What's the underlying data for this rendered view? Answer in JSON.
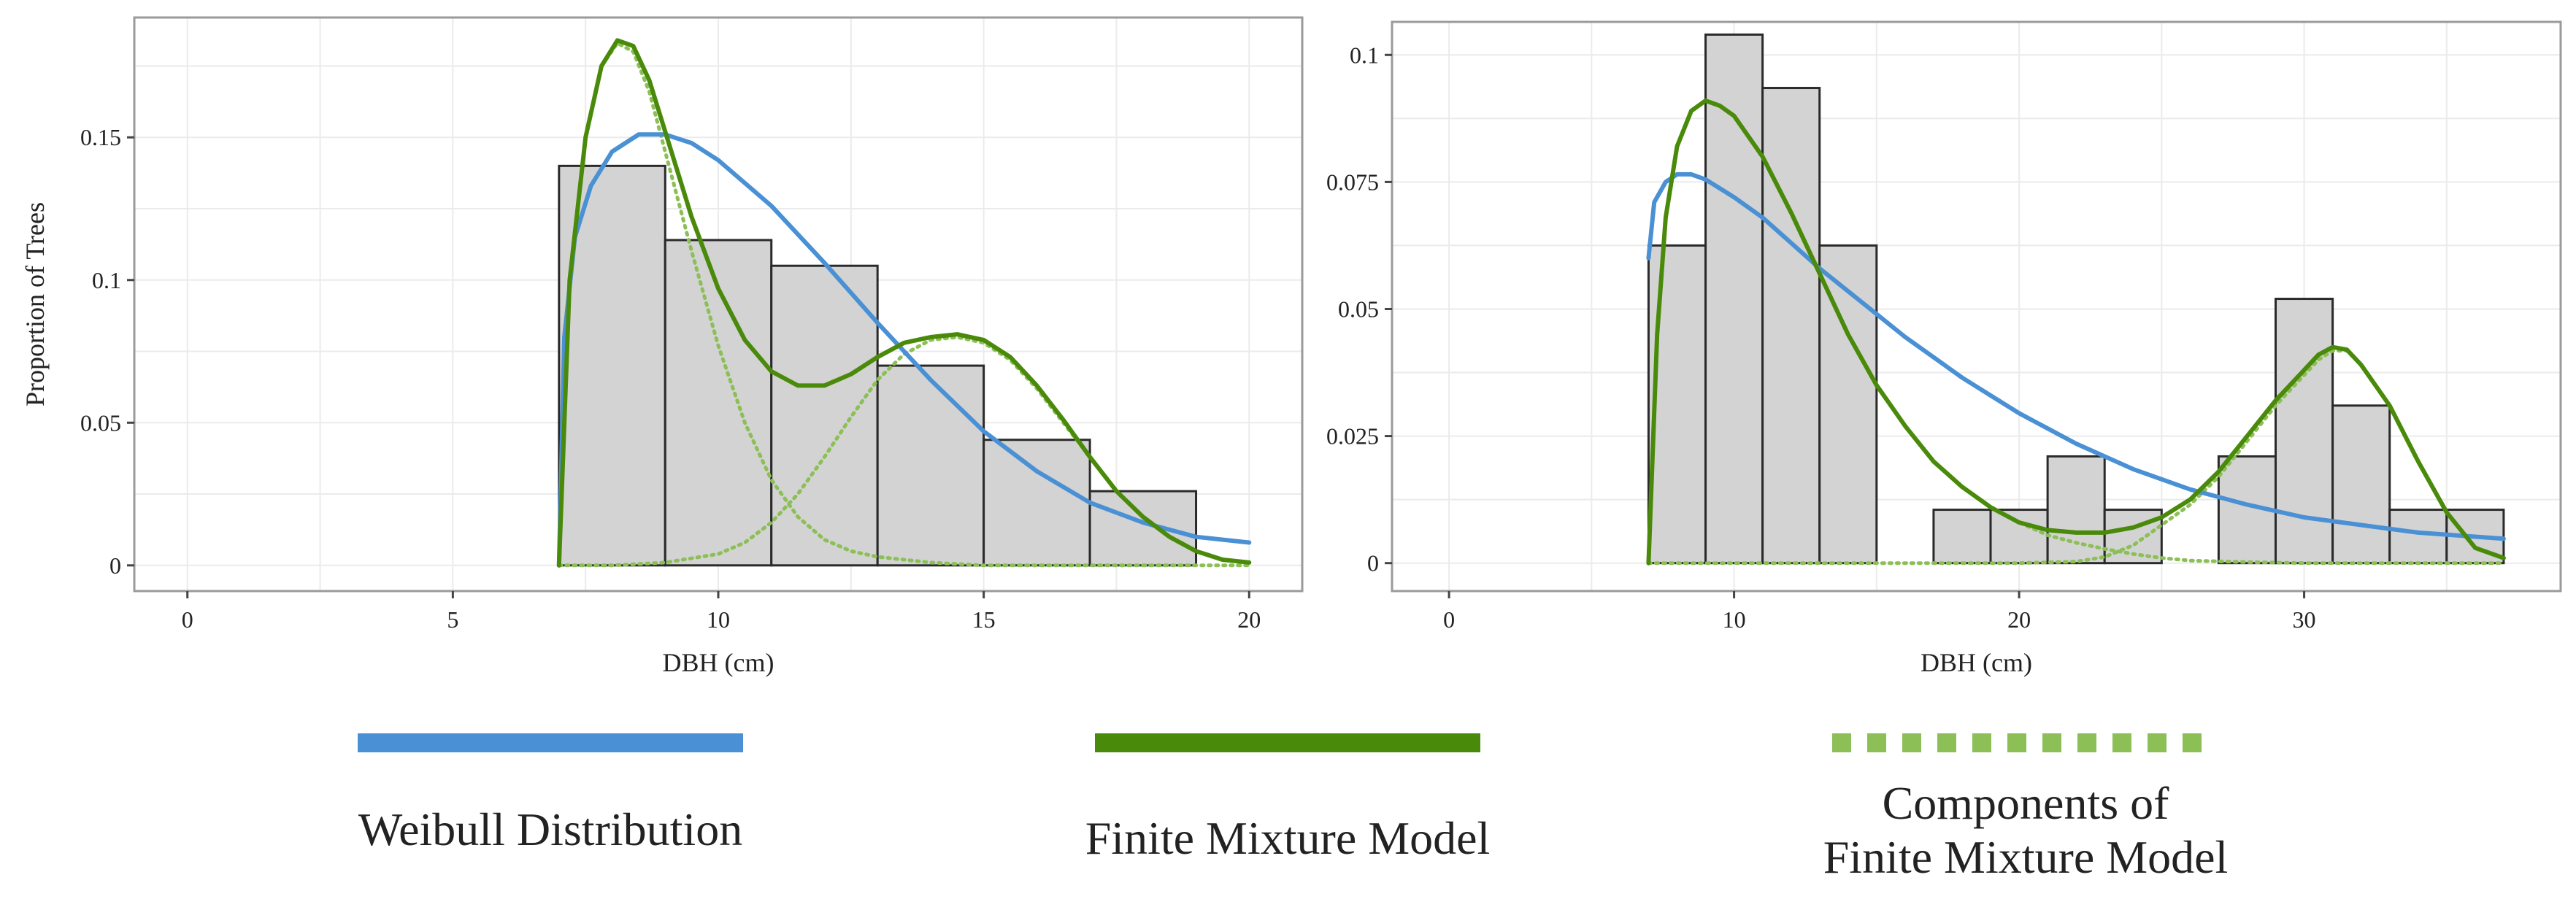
{
  "colors": {
    "weibull": "#4a90d4",
    "mixture": "#4a8a0a",
    "components": "#8cbf56",
    "bar_fill": "#d3d3d3",
    "bar_stroke": "#2a2a2a",
    "grid": "#ebebeb",
    "panel_border": "#9a9a9a"
  },
  "chart_data": [
    {
      "type": "bar",
      "xlabel": "DBH (cm)",
      "ylabel": "Proportion of Trees",
      "xlim": [
        -1,
        21
      ],
      "ylim": [
        -0.009,
        0.192
      ],
      "x_ticks": [
        0,
        5,
        10,
        15,
        20
      ],
      "x_tick_labels": [
        "0",
        "5",
        "10",
        "15",
        "20"
      ],
      "y_ticks": [
        0,
        0.05,
        0.1,
        0.15
      ],
      "y_tick_labels": [
        "0",
        "0.05",
        "0.1",
        "0.15"
      ],
      "grid": true,
      "bins": [
        {
          "x0": 7,
          "x1": 9,
          "value": 0.14
        },
        {
          "x0": 9,
          "x1": 11,
          "value": 0.114
        },
        {
          "x0": 11,
          "x1": 13,
          "value": 0.105
        },
        {
          "x0": 13,
          "x1": 15,
          "value": 0.07
        },
        {
          "x0": 15,
          "x1": 17,
          "value": 0.044
        },
        {
          "x0": 17,
          "x1": 19,
          "value": 0.026
        }
      ],
      "curves": [
        {
          "name": "Weibull Distribution",
          "style": "solid",
          "color_key": "weibull",
          "x": [
            7,
            7.1,
            7.3,
            7.6,
            8.0,
            8.5,
            9.0,
            9.5,
            10,
            11,
            12,
            13,
            14,
            15,
            16,
            17,
            18,
            19,
            20
          ],
          "y": [
            0,
            0.08,
            0.115,
            0.133,
            0.145,
            0.151,
            0.151,
            0.148,
            0.142,
            0.126,
            0.106,
            0.085,
            0.065,
            0.047,
            0.033,
            0.022,
            0.015,
            0.01,
            0.008
          ]
        },
        {
          "name": "Finite Mixture Model",
          "style": "solid",
          "color_key": "mixture",
          "x": [
            7,
            7.2,
            7.5,
            7.8,
            8.1,
            8.4,
            8.7,
            9.0,
            9.5,
            10,
            10.5,
            11,
            11.5,
            12,
            12.5,
            13,
            13.5,
            14,
            14.5,
            15,
            15.5,
            16,
            16.5,
            17,
            17.5,
            18,
            18.5,
            19,
            19.5,
            20
          ],
          "y": [
            0,
            0.1,
            0.15,
            0.175,
            0.184,
            0.182,
            0.17,
            0.152,
            0.122,
            0.097,
            0.079,
            0.068,
            0.063,
            0.063,
            0.067,
            0.073,
            0.078,
            0.08,
            0.081,
            0.079,
            0.073,
            0.063,
            0.051,
            0.038,
            0.026,
            0.017,
            0.01,
            0.005,
            0.002,
            0.001
          ]
        },
        {
          "name": "Components of Finite Mixture Model",
          "style": "dotted",
          "color_key": "components",
          "x": [
            7,
            7.2,
            7.5,
            7.8,
            8.1,
            8.4,
            8.7,
            9.0,
            9.5,
            10,
            10.5,
            11,
            11.5,
            12,
            12.5,
            13,
            14,
            15,
            16,
            17,
            18,
            19,
            20
          ],
          "y": [
            0,
            0.1,
            0.15,
            0.175,
            0.183,
            0.18,
            0.166,
            0.145,
            0.11,
            0.077,
            0.05,
            0.03,
            0.017,
            0.009,
            0.005,
            0.003,
            0.001,
            0,
            0,
            0,
            0,
            0,
            0
          ]
        },
        {
          "name": "Components of Finite Mixture Model",
          "style": "dotted",
          "color_key": "components",
          "x": [
            7,
            8,
            9,
            10,
            10.5,
            11,
            11.5,
            12,
            12.5,
            13,
            13.5,
            14,
            14.5,
            15,
            15.5,
            16,
            16.5,
            17,
            17.5,
            18,
            18.5,
            19,
            19.5,
            20
          ],
          "y": [
            0,
            0,
            0.001,
            0.004,
            0.008,
            0.015,
            0.025,
            0.038,
            0.052,
            0.065,
            0.074,
            0.079,
            0.08,
            0.078,
            0.072,
            0.062,
            0.05,
            0.038,
            0.026,
            0.017,
            0.01,
            0.005,
            0.002,
            0.001
          ]
        }
      ]
    },
    {
      "type": "bar",
      "xlabel": "DBH (cm)",
      "ylabel": "",
      "xlim": [
        -2,
        39
      ],
      "ylim": [
        -0.0055,
        0.1065
      ],
      "x_ticks": [
        0,
        10,
        20,
        30
      ],
      "x_tick_labels": [
        "0",
        "10",
        "20",
        "30"
      ],
      "y_ticks": [
        0,
        0.025,
        0.05,
        0.075,
        0.1
      ],
      "y_tick_labels": [
        "0",
        "0.025",
        "0.05",
        "0.075",
        "0.1"
      ],
      "grid": true,
      "bins": [
        {
          "x0": 7,
          "x1": 9,
          "value": 0.0625
        },
        {
          "x0": 9,
          "x1": 11,
          "value": 0.104
        },
        {
          "x0": 11,
          "x1": 13,
          "value": 0.0935
        },
        {
          "x0": 13,
          "x1": 15,
          "value": 0.0625
        },
        {
          "x0": 17,
          "x1": 19,
          "value": 0.0105
        },
        {
          "x0": 19,
          "x1": 21,
          "value": 0.0105
        },
        {
          "x0": 21,
          "x1": 23,
          "value": 0.021
        },
        {
          "x0": 23,
          "x1": 25,
          "value": 0.0105
        },
        {
          "x0": 27,
          "x1": 29,
          "value": 0.021
        },
        {
          "x0": 29,
          "x1": 31,
          "value": 0.052
        },
        {
          "x0": 31,
          "x1": 33,
          "value": 0.031
        },
        {
          "x0": 33,
          "x1": 35,
          "value": 0.0105
        },
        {
          "x0": 35,
          "x1": 37,
          "value": 0.0105
        }
      ],
      "curves": [
        {
          "name": "Weibull Distribution",
          "style": "solid",
          "color_key": "weibull",
          "x": [
            7,
            7.2,
            7.6,
            8,
            8.5,
            9,
            10,
            11,
            12,
            13,
            14,
            15,
            16,
            17,
            18,
            19,
            20,
            22,
            24,
            26,
            28,
            30,
            32,
            34,
            36,
            37
          ],
          "y": [
            0.06,
            0.071,
            0.075,
            0.0765,
            0.0765,
            0.0755,
            0.072,
            0.068,
            0.063,
            0.058,
            0.0535,
            0.049,
            0.0445,
            0.0405,
            0.0365,
            0.033,
            0.0295,
            0.0235,
            0.0185,
            0.0145,
            0.0115,
            0.009,
            0.0075,
            0.006,
            0.0052,
            0.0048
          ]
        },
        {
          "name": "Finite Mixture Model",
          "style": "solid",
          "color_key": "mixture",
          "x": [
            7,
            7.3,
            7.6,
            8,
            8.5,
            9,
            9.5,
            10,
            11,
            12,
            13,
            14,
            15,
            16,
            17,
            18,
            19,
            20,
            21,
            22,
            23,
            24,
            25,
            26,
            27,
            28,
            29,
            30,
            30.5,
            31,
            31.5,
            32,
            33,
            34,
            35,
            36,
            37
          ],
          "y": [
            0,
            0.045,
            0.068,
            0.082,
            0.089,
            0.091,
            0.09,
            0.088,
            0.08,
            0.069,
            0.057,
            0.045,
            0.035,
            0.027,
            0.02,
            0.015,
            0.011,
            0.008,
            0.0065,
            0.006,
            0.006,
            0.007,
            0.009,
            0.0125,
            0.018,
            0.025,
            0.032,
            0.038,
            0.041,
            0.0425,
            0.042,
            0.039,
            0.031,
            0.02,
            0.01,
            0.003,
            0.001
          ]
        },
        {
          "name": "Components of Finite Mixture Model",
          "style": "dotted",
          "color_key": "components",
          "x": [
            7,
            7.3,
            7.6,
            8,
            8.5,
            9,
            9.5,
            10,
            11,
            12,
            13,
            14,
            15,
            16,
            17,
            18,
            19,
            20,
            21,
            22,
            23,
            24,
            25,
            26,
            28,
            30,
            32,
            34,
            37
          ],
          "y": [
            0,
            0.045,
            0.068,
            0.082,
            0.089,
            0.091,
            0.09,
            0.088,
            0.08,
            0.069,
            0.057,
            0.045,
            0.035,
            0.027,
            0.02,
            0.015,
            0.011,
            0.008,
            0.0055,
            0.004,
            0.0028,
            0.0018,
            0.001,
            0.0005,
            0.0002,
            0,
            0,
            0,
            0
          ]
        },
        {
          "name": "Components of Finite Mixture Model",
          "style": "dotted",
          "color_key": "components",
          "x": [
            7,
            15,
            20,
            22,
            23,
            24,
            25,
            26,
            27,
            28,
            29,
            30,
            30.5,
            31,
            31.5,
            32,
            33,
            34,
            35,
            36,
            37
          ],
          "y": [
            0,
            0,
            0,
            0.0003,
            0.0012,
            0.0035,
            0.0075,
            0.0115,
            0.017,
            0.024,
            0.031,
            0.037,
            0.04,
            0.0418,
            0.0418,
            0.039,
            0.031,
            0.02,
            0.01,
            0.003,
            0.001
          ]
        }
      ]
    }
  ],
  "legend": {
    "items": [
      {
        "label": "Weibull Distribution",
        "line_lines": [
          "Weibull Distribution"
        ],
        "style": "solid",
        "color_key": "weibull"
      },
      {
        "label": "Finite Mixture Model",
        "line_lines": [
          "Finite Mixture Model"
        ],
        "style": "solid",
        "color_key": "mixture"
      },
      {
        "label": "Components of Finite Mixture Model",
        "line_lines": [
          "Components of",
          "Finite Mixture Model"
        ],
        "style": "dashed",
        "color_key": "components"
      }
    ]
  }
}
